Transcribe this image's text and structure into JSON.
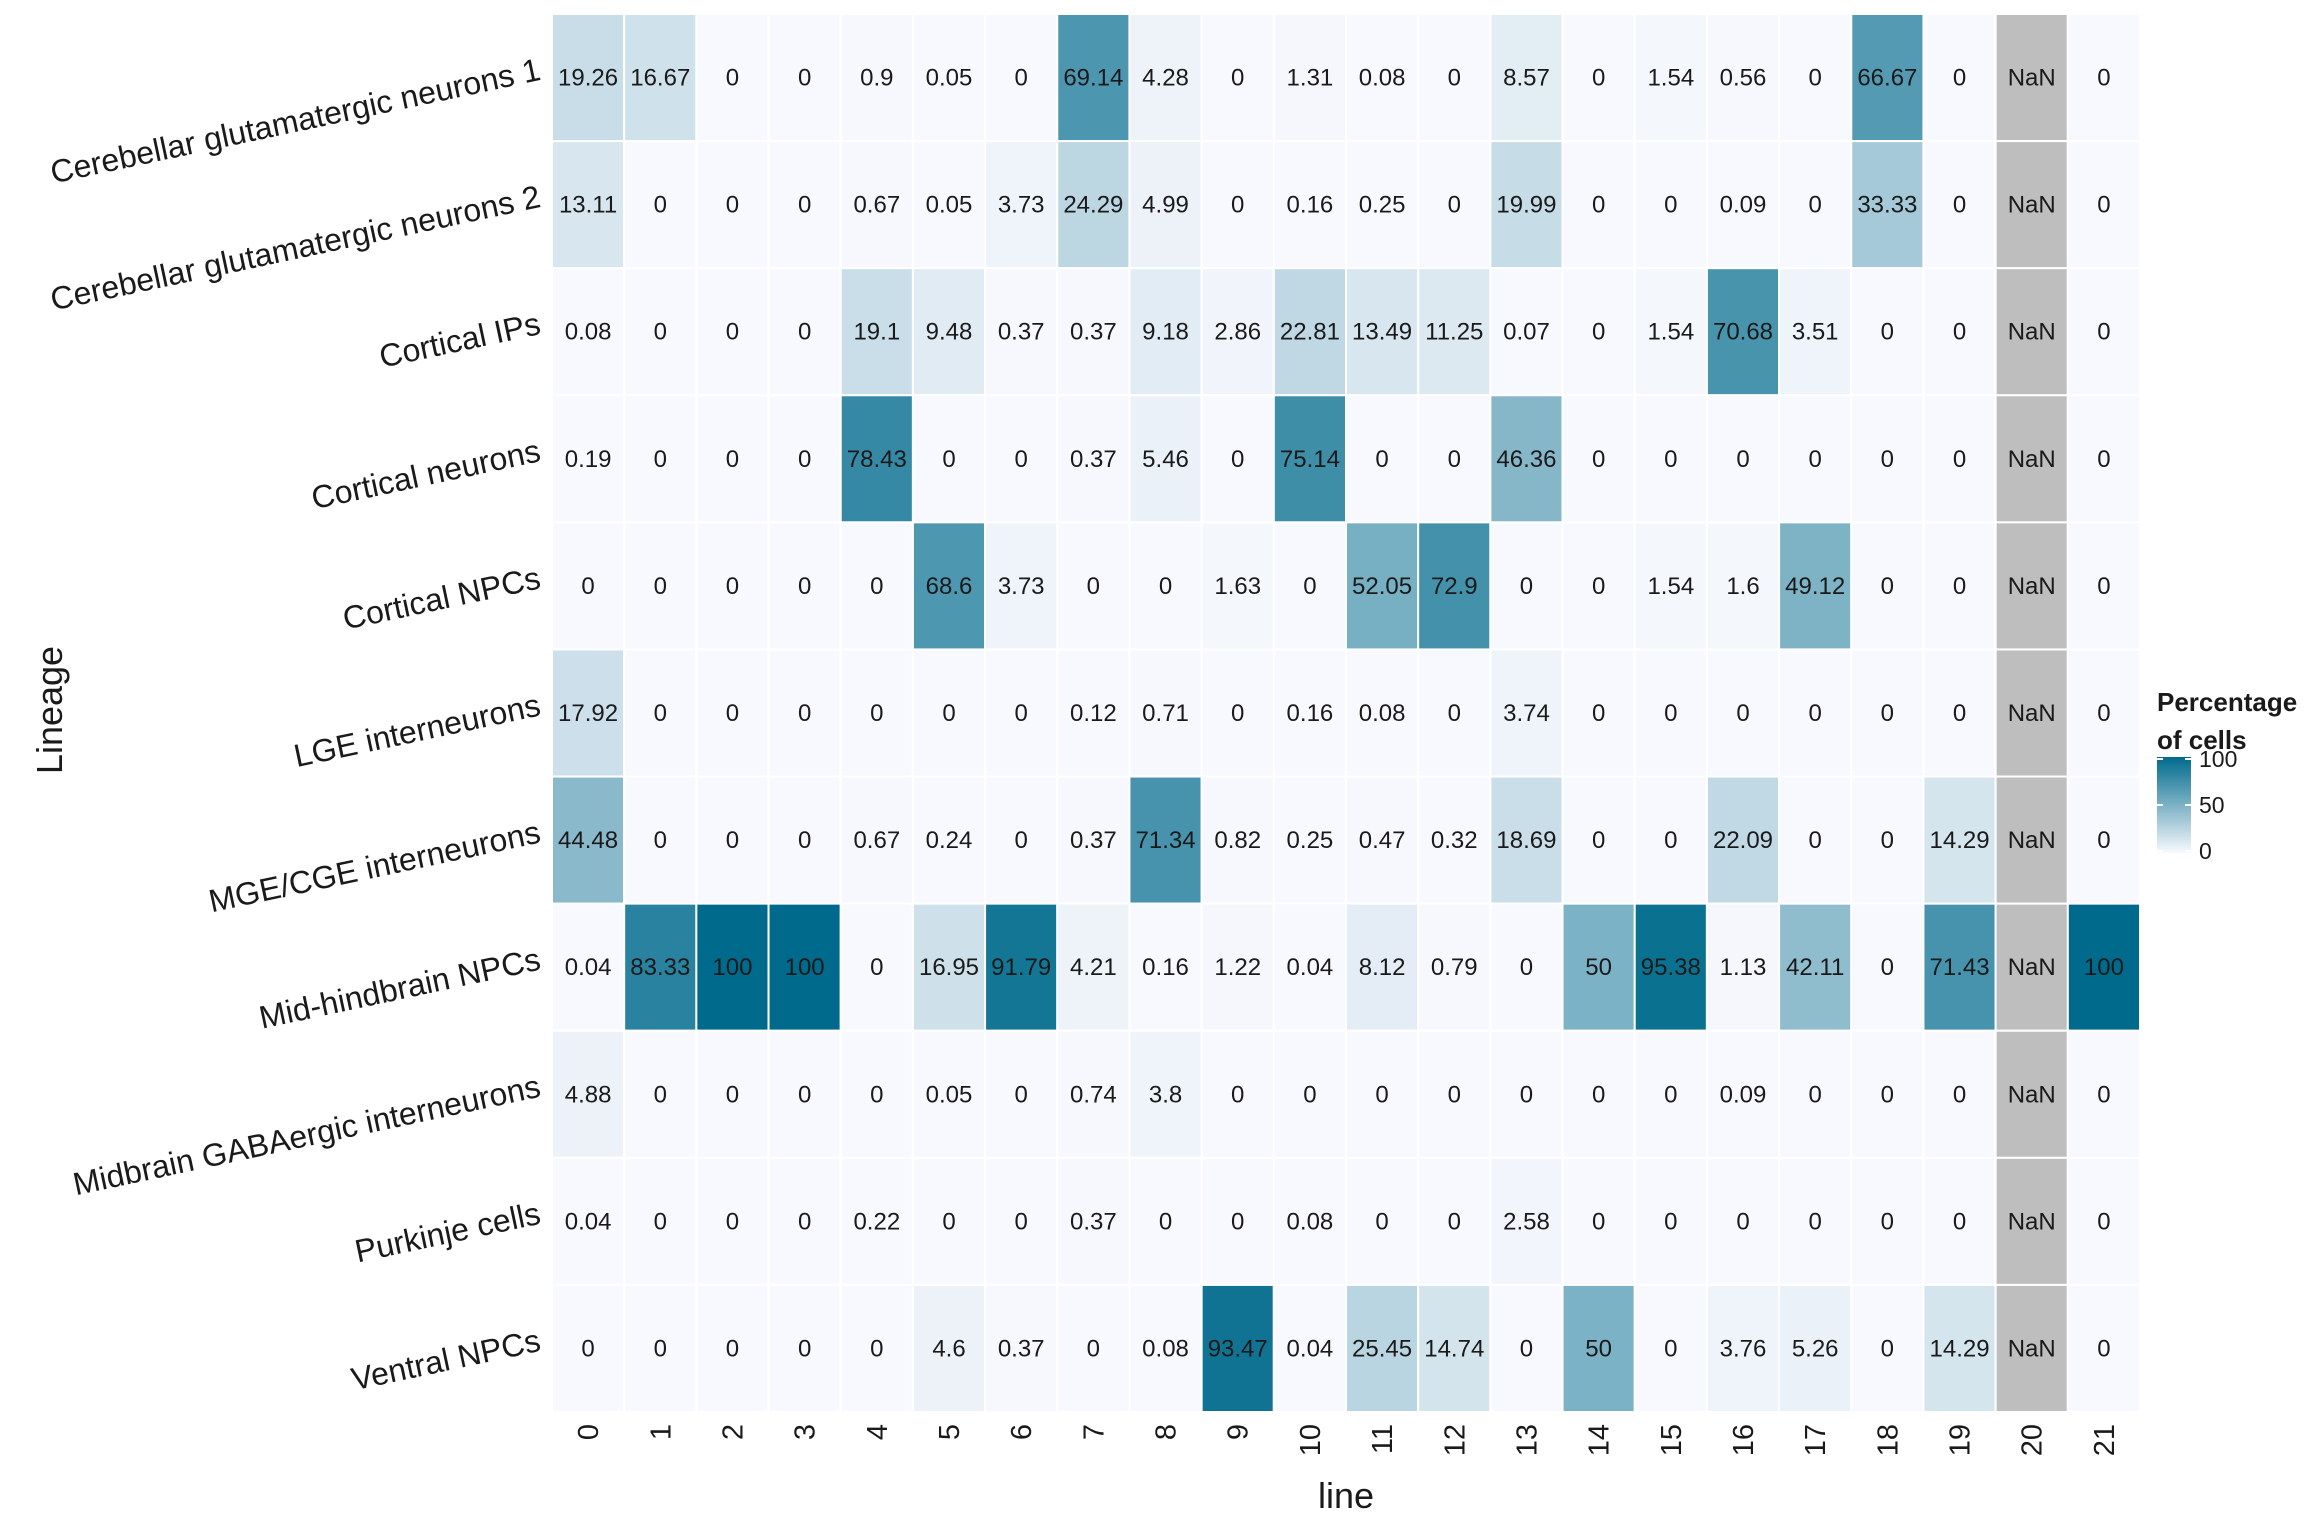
{
  "chart_data": {
    "type": "heatmap",
    "title": "",
    "xlabel": "line",
    "ylabel": "Lineage",
    "columns": [
      "0",
      "1",
      "2",
      "3",
      "4",
      "5",
      "6",
      "7",
      "8",
      "9",
      "10",
      "11",
      "12",
      "13",
      "14",
      "15",
      "16",
      "17",
      "18",
      "19",
      "20",
      "21"
    ],
    "rows": [
      "Cerebellar glutamatergic neurons 1",
      "Cerebellar glutamatergic neurons 2",
      "Cortical IPs",
      "Cortical neurons",
      "Cortical NPCs",
      "LGE interneurons",
      "MGE/CGE interneurons",
      "Mid-hindbrain NPCs",
      "Midbrain GABAergic interneurons",
      "Purkinje cells",
      "Ventral NPCs"
    ],
    "values": [
      [
        "19.26",
        "16.67",
        "0",
        "0",
        "0.9",
        "0.05",
        "0",
        "69.14",
        "4.28",
        "0",
        "1.31",
        "0.08",
        "0",
        "8.57",
        "0",
        "1.54",
        "0.56",
        "0",
        "66.67",
        "0",
        "NaN",
        "0"
      ],
      [
        "13.11",
        "0",
        "0",
        "0",
        "0.67",
        "0.05",
        "3.73",
        "24.29",
        "4.99",
        "0",
        "0.16",
        "0.25",
        "0",
        "19.99",
        "0",
        "0",
        "0.09",
        "0",
        "33.33",
        "0",
        "NaN",
        "0"
      ],
      [
        "0.08",
        "0",
        "0",
        "0",
        "19.1",
        "9.48",
        "0.37",
        "0.37",
        "9.18",
        "2.86",
        "22.81",
        "13.49",
        "11.25",
        "0.07",
        "0",
        "1.54",
        "70.68",
        "3.51",
        "0",
        "0",
        "NaN",
        "0"
      ],
      [
        "0.19",
        "0",
        "0",
        "0",
        "78.43",
        "0",
        "0",
        "0.37",
        "5.46",
        "0",
        "75.14",
        "0",
        "0",
        "46.36",
        "0",
        "0",
        "0",
        "0",
        "0",
        "0",
        "NaN",
        "0"
      ],
      [
        "0",
        "0",
        "0",
        "0",
        "0",
        "68.6",
        "3.73",
        "0",
        "0",
        "1.63",
        "0",
        "52.05",
        "72.9",
        "0",
        "0",
        "1.54",
        "1.6",
        "49.12",
        "0",
        "0",
        "NaN",
        "0"
      ],
      [
        "17.92",
        "0",
        "0",
        "0",
        "0",
        "0",
        "0",
        "0.12",
        "0.71",
        "0",
        "0.16",
        "0.08",
        "0",
        "3.74",
        "0",
        "0",
        "0",
        "0",
        "0",
        "0",
        "NaN",
        "0"
      ],
      [
        "44.48",
        "0",
        "0",
        "0",
        "0.67",
        "0.24",
        "0",
        "0.37",
        "71.34",
        "0.82",
        "0.25",
        "0.47",
        "0.32",
        "18.69",
        "0",
        "0",
        "22.09",
        "0",
        "0",
        "14.29",
        "NaN",
        "0"
      ],
      [
        "0.04",
        "83.33",
        "100",
        "100",
        "0",
        "16.95",
        "91.79",
        "4.21",
        "0.16",
        "1.22",
        "0.04",
        "8.12",
        "0.79",
        "0",
        "50",
        "95.38",
        "1.13",
        "42.11",
        "0",
        "71.43",
        "NaN",
        "100"
      ],
      [
        "4.88",
        "0",
        "0",
        "0",
        "0",
        "0.05",
        "0",
        "0.74",
        "3.8",
        "0",
        "0",
        "0",
        "0",
        "0",
        "0",
        "0",
        "0.09",
        "0",
        "0",
        "0",
        "NaN",
        "0"
      ],
      [
        "0.04",
        "0",
        "0",
        "0",
        "0.22",
        "0",
        "0",
        "0.37",
        "0",
        "0",
        "0.08",
        "0",
        "0",
        "2.58",
        "0",
        "0",
        "0",
        "0",
        "0",
        "0",
        "NaN",
        "0"
      ],
      [
        "0",
        "0",
        "0",
        "0",
        "0",
        "4.6",
        "0.37",
        "0",
        "0.08",
        "93.47",
        "0.04",
        "25.45",
        "14.74",
        "0",
        "50",
        "0",
        "3.76",
        "5.26",
        "0",
        "14.29",
        "NaN",
        "0"
      ]
    ],
    "color_scale": {
      "low_color": "#f8f9fe",
      "high_color": "#006a8c",
      "na_color": "#bebebe",
      "range": [
        0,
        100
      ]
    },
    "legend": {
      "title_line1": "Percentage",
      "title_line2": "of cells",
      "ticks": [
        {
          "value": 100,
          "label": "100"
        },
        {
          "value": 50,
          "label": "50"
        },
        {
          "value": 0,
          "label": "0"
        }
      ],
      "placement": "right"
    }
  }
}
